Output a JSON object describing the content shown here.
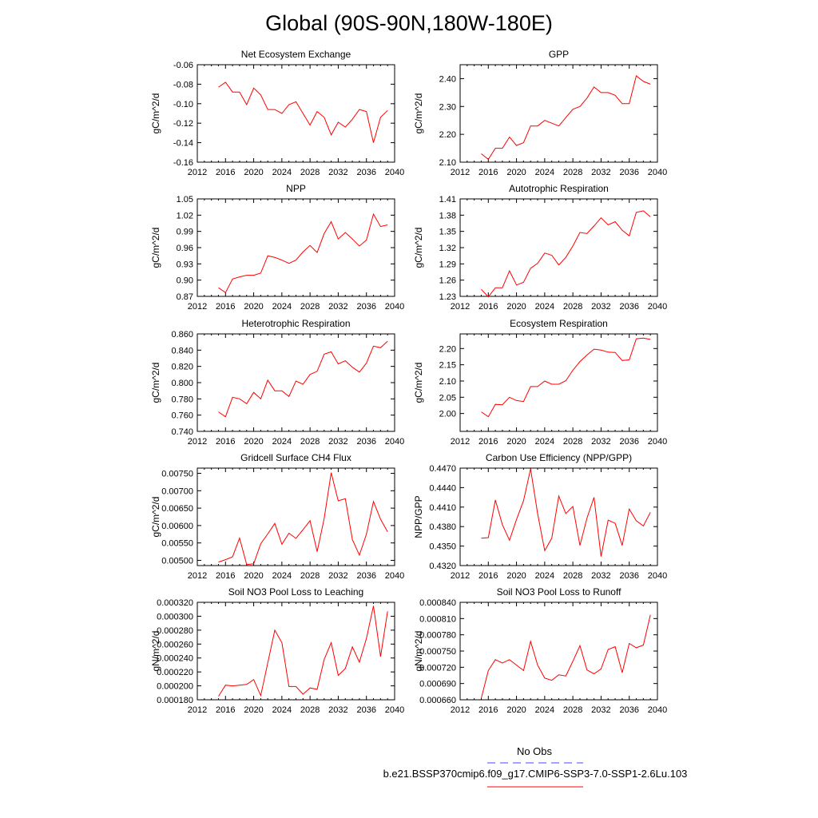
{
  "title": "Global (90S-90N,180W-180E)",
  "legend": {
    "entries": [
      {
        "label": "No Obs",
        "color": "#4444ff",
        "style": "dashed"
      },
      {
        "label": "b.e21.BSSP370cmip6.f09_g17.CMIP6-SSP3-7.0-SSP1-2.6Lu.103",
        "color": "#ff0000",
        "style": "solid"
      }
    ]
  },
  "line_color": "#ff0000",
  "chart_data": [
    {
      "type": "line",
      "title": "Net Ecosystem Exchange",
      "ylabel": "gC/m^2/d",
      "xlim": [
        2012,
        2040
      ],
      "ylim": [
        -0.16,
        -0.06
      ],
      "xticks": [
        "2012",
        "2016",
        "2020",
        "2024",
        "2028",
        "2032",
        "2036",
        "2040"
      ],
      "yticks": [
        "-0.16",
        "-0.14",
        "-0.12",
        "-0.10",
        "-0.08",
        "-0.06"
      ],
      "x": [
        2015,
        2016,
        2017,
        2018,
        2019,
        2020,
        2021,
        2022,
        2023,
        2024,
        2025,
        2026,
        2027,
        2028,
        2029,
        2030,
        2031,
        2032,
        2033,
        2034,
        2035,
        2036,
        2037,
        2038,
        2039
      ],
      "y": [
        -0.083,
        -0.078,
        -0.088,
        -0.088,
        -0.101,
        -0.084,
        -0.091,
        -0.106,
        -0.106,
        -0.11,
        -0.101,
        -0.098,
        -0.11,
        -0.122,
        -0.108,
        -0.114,
        -0.132,
        -0.119,
        -0.124,
        -0.116,
        -0.106,
        -0.108,
        -0.14,
        -0.114,
        -0.107
      ]
    },
    {
      "type": "line",
      "title": "GPP",
      "ylabel": "gC/m^2/d",
      "xlim": [
        2012,
        2040
      ],
      "ylim": [
        2.1,
        2.45
      ],
      "xticks": [
        "2012",
        "2016",
        "2020",
        "2024",
        "2028",
        "2032",
        "2036",
        "2040"
      ],
      "yticks": [
        "2.10",
        "2.20",
        "2.30",
        "2.40"
      ],
      "x": [
        2015,
        2016,
        2017,
        2018,
        2019,
        2020,
        2021,
        2022,
        2023,
        2024,
        2025,
        2026,
        2027,
        2028,
        2029,
        2030,
        2031,
        2032,
        2033,
        2034,
        2035,
        2036,
        2037,
        2038,
        2039
      ],
      "y": [
        2.13,
        2.11,
        2.15,
        2.15,
        2.19,
        2.16,
        2.17,
        2.23,
        2.23,
        2.25,
        2.24,
        2.23,
        2.26,
        2.29,
        2.3,
        2.33,
        2.37,
        2.35,
        2.35,
        2.34,
        2.31,
        2.31,
        2.41,
        2.39,
        2.38
      ]
    },
    {
      "type": "line",
      "title": "NPP",
      "ylabel": "gC/m^2/d",
      "xlim": [
        2012,
        2040
      ],
      "ylim": [
        0.87,
        1.05
      ],
      "xticks": [
        "2012",
        "2016",
        "2020",
        "2024",
        "2028",
        "2032",
        "2036",
        "2040"
      ],
      "yticks": [
        "0.87",
        "0.90",
        "0.93",
        "0.96",
        "0.99",
        "1.02",
        "1.05"
      ],
      "x": [
        2015,
        2016,
        2017,
        2018,
        2019,
        2020,
        2021,
        2022,
        2023,
        2024,
        2025,
        2026,
        2027,
        2028,
        2029,
        2030,
        2031,
        2032,
        2033,
        2034,
        2035,
        2036,
        2037,
        2038,
        2039
      ],
      "y": [
        0.886,
        0.877,
        0.902,
        0.906,
        0.909,
        0.909,
        0.913,
        0.945,
        0.942,
        0.937,
        0.931,
        0.937,
        0.952,
        0.964,
        0.951,
        0.986,
        1.008,
        0.976,
        0.988,
        0.976,
        0.963,
        0.974,
        1.022,
        0.999,
        1.002
      ]
    },
    {
      "type": "line",
      "title": "Autotrophic Respiration",
      "ylabel": "gC/m^2/d",
      "xlim": [
        2012,
        2040
      ],
      "ylim": [
        1.23,
        1.41
      ],
      "xticks": [
        "2012",
        "2016",
        "2020",
        "2024",
        "2028",
        "2032",
        "2036",
        "2040"
      ],
      "yticks": [
        "1.23",
        "1.26",
        "1.29",
        "1.32",
        "1.35",
        "1.38",
        "1.41"
      ],
      "x": [
        2015,
        2016,
        2017,
        2018,
        2019,
        2020,
        2021,
        2022,
        2023,
        2024,
        2025,
        2026,
        2027,
        2028,
        2029,
        2030,
        2031,
        2032,
        2033,
        2034,
        2035,
        2036,
        2037,
        2038,
        2039
      ],
      "y": [
        1.243,
        1.229,
        1.246,
        1.246,
        1.277,
        1.251,
        1.256,
        1.282,
        1.291,
        1.31,
        1.306,
        1.288,
        1.302,
        1.323,
        1.348,
        1.346,
        1.36,
        1.375,
        1.362,
        1.368,
        1.352,
        1.342,
        1.385,
        1.388,
        1.377
      ]
    },
    {
      "type": "line",
      "title": "Heterotrophic Respiration",
      "ylabel": "gC/m^2/d",
      "xlim": [
        2012,
        2040
      ],
      "ylim": [
        0.74,
        0.86
      ],
      "xticks": [
        "2012",
        "2016",
        "2020",
        "2024",
        "2028",
        "2032",
        "2036",
        "2040"
      ],
      "yticks": [
        "0.740",
        "0.760",
        "0.780",
        "0.800",
        "0.820",
        "0.840",
        "0.860"
      ],
      "x": [
        2015,
        2016,
        2017,
        2018,
        2019,
        2020,
        2021,
        2022,
        2023,
        2024,
        2025,
        2026,
        2027,
        2028,
        2029,
        2030,
        2031,
        2032,
        2033,
        2034,
        2035,
        2036,
        2037,
        2038,
        2039
      ],
      "y": [
        0.764,
        0.758,
        0.782,
        0.78,
        0.774,
        0.788,
        0.78,
        0.803,
        0.79,
        0.79,
        0.783,
        0.802,
        0.798,
        0.81,
        0.814,
        0.835,
        0.838,
        0.823,
        0.827,
        0.819,
        0.813,
        0.824,
        0.845,
        0.843,
        0.851
      ]
    },
    {
      "type": "line",
      "title": "Ecosystem Respiration",
      "ylabel": "gC/m^2/d",
      "xlim": [
        2012,
        2040
      ],
      "ylim": [
        1.945,
        2.245
      ],
      "xticks": [
        "2012",
        "2016",
        "2020",
        "2024",
        "2028",
        "2032",
        "2036",
        "2040"
      ],
      "yticks": [
        "2.00",
        "2.05",
        "2.10",
        "2.15",
        "2.20"
      ],
      "x": [
        2015,
        2016,
        2017,
        2018,
        2019,
        2020,
        2021,
        2022,
        2023,
        2024,
        2025,
        2026,
        2027,
        2028,
        2029,
        2030,
        2031,
        2032,
        2033,
        2034,
        2035,
        2036,
        2037,
        2038,
        2039
      ],
      "y": [
        2.005,
        1.99,
        2.028,
        2.027,
        2.05,
        2.04,
        2.037,
        2.083,
        2.083,
        2.1,
        2.09,
        2.09,
        2.101,
        2.133,
        2.16,
        2.18,
        2.198,
        2.195,
        2.189,
        2.188,
        2.163,
        2.165,
        2.23,
        2.232,
        2.228
      ]
    },
    {
      "type": "line",
      "title": "Gridcell Surface CH4 Flux",
      "ylabel": "gC/m^2/d",
      "xlim": [
        2012,
        2040
      ],
      "ylim": [
        0.00485,
        0.00765
      ],
      "xticks": [
        "2012",
        "2016",
        "2020",
        "2024",
        "2028",
        "2032",
        "2036",
        "2040"
      ],
      "yticks": [
        "0.00500",
        "0.00550",
        "0.00600",
        "0.00650",
        "0.00700",
        "0.00750"
      ],
      "x": [
        2015,
        2016,
        2017,
        2018,
        2019,
        2020,
        2021,
        2022,
        2023,
        2024,
        2025,
        2026,
        2027,
        2028,
        2029,
        2030,
        2031,
        2032,
        2033,
        2034,
        2035,
        2036,
        2037,
        2038,
        2039
      ],
      "y": [
        0.00495,
        0.00502,
        0.0051,
        0.00564,
        0.00488,
        0.0049,
        0.00548,
        0.00576,
        0.00606,
        0.00546,
        0.00578,
        0.00563,
        0.00588,
        0.00614,
        0.00525,
        0.0062,
        0.00752,
        0.00671,
        0.00677,
        0.0056,
        0.00515,
        0.00575,
        0.00669,
        0.00618,
        0.00582
      ]
    },
    {
      "type": "line",
      "title": "Carbon Use Efficiency (NPP/GPP)",
      "ylabel": "NPP/GPP",
      "xlim": [
        2012,
        2040
      ],
      "ylim": [
        0.432,
        0.447
      ],
      "xticks": [
        "2012",
        "2016",
        "2020",
        "2024",
        "2028",
        "2032",
        "2036",
        "2040"
      ],
      "yticks": [
        "0.4320",
        "0.4350",
        "0.4380",
        "0.4410",
        "0.4440",
        "0.4470"
      ],
      "x": [
        2015,
        2016,
        2017,
        2018,
        2019,
        2020,
        2021,
        2022,
        2023,
        2024,
        2025,
        2026,
        2027,
        2028,
        2029,
        2030,
        2031,
        2032,
        2033,
        2034,
        2035,
        2036,
        2037,
        2038,
        2039
      ],
      "y": [
        0.4362,
        0.4363,
        0.4421,
        0.4383,
        0.4359,
        0.4391,
        0.442,
        0.4469,
        0.44,
        0.4343,
        0.4362,
        0.4427,
        0.44,
        0.4411,
        0.4351,
        0.4393,
        0.4425,
        0.4334,
        0.439,
        0.4385,
        0.4351,
        0.4407,
        0.4389,
        0.4381,
        0.4402
      ]
    },
    {
      "type": "line",
      "title": "Soil NO3 Pool Loss to Leaching",
      "ylabel": "gN/m^2/d",
      "xlim": [
        2012,
        2040
      ],
      "ylim": [
        0.00018,
        0.00032
      ],
      "xticks": [
        "2012",
        "2016",
        "2020",
        "2024",
        "2028",
        "2032",
        "2036",
        "2040"
      ],
      "yticks": [
        "0.000180",
        "0.000200",
        "0.000220",
        "0.000240",
        "0.000260",
        "0.000280",
        "0.000300",
        "0.000320"
      ],
      "x": [
        2015,
        2016,
        2017,
        2018,
        2019,
        2020,
        2021,
        2022,
        2023,
        2024,
        2025,
        2026,
        2027,
        2028,
        2029,
        2030,
        2031,
        2032,
        2033,
        2034,
        2035,
        2036,
        2037,
        2038,
        2039
      ],
      "y": [
        0.000185,
        0.000201,
        0.0002,
        0.000201,
        0.000202,
        0.000209,
        0.000186,
        0.000233,
        0.00028,
        0.000262,
        0.000199,
        0.000199,
        0.000188,
        0.000197,
        0.000195,
        0.000238,
        0.000262,
        0.000215,
        0.000225,
        0.000256,
        0.000234,
        0.000268,
        0.000315,
        0.000242,
        0.000307
      ]
    },
    {
      "type": "line",
      "title": "Soil NO3 Pool Loss to Runoff",
      "ylabel": "gN/m^2/d",
      "xlim": [
        2012,
        2040
      ],
      "ylim": [
        0.00066,
        0.00084
      ],
      "xticks": [
        "2012",
        "2016",
        "2020",
        "2024",
        "2028",
        "2032",
        "2036",
        "2040"
      ],
      "yticks": [
        "0.000660",
        "0.000690",
        "0.000720",
        "0.000750",
        "0.000780",
        "0.000810",
        "0.000840"
      ],
      "x": [
        2015,
        2016,
        2017,
        2018,
        2019,
        2020,
        2021,
        2022,
        2023,
        2024,
        2025,
        2026,
        2027,
        2028,
        2029,
        2030,
        2031,
        2032,
        2033,
        2034,
        2035,
        2036,
        2037,
        2038,
        2039
      ],
      "y": [
        0.000663,
        0.000714,
        0.000734,
        0.000728,
        0.000734,
        0.000724,
        0.000714,
        0.000768,
        0.000724,
        0.0007,
        0.000696,
        0.000706,
        0.000704,
        0.000731,
        0.00076,
        0.000715,
        0.000708,
        0.000717,
        0.000753,
        0.000758,
        0.00071,
        0.000764,
        0.000756,
        0.000761,
        0.000817
      ]
    }
  ]
}
